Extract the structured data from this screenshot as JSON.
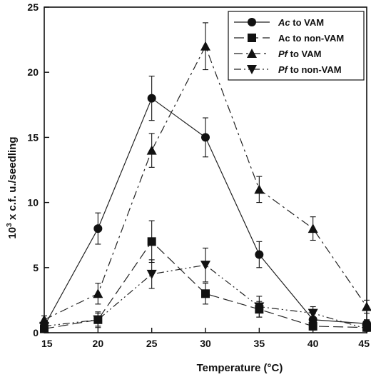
{
  "chart_data": {
    "type": "line",
    "xlabel": "Temperature (°C)",
    "ylabel_base": "10",
    "ylabel_exp": "3",
    "ylabel_rest": " x c.f. u./seedling",
    "x": [
      15,
      20,
      25,
      30,
      35,
      40,
      45
    ],
    "xlim": [
      15,
      45
    ],
    "ylim": [
      0,
      25
    ],
    "xticks": [
      "15",
      "20",
      "25",
      "30",
      "35",
      "40",
      "45"
    ],
    "yticks": [
      "0",
      "5",
      "10",
      "15",
      "20",
      "25"
    ],
    "grid": false,
    "legend_position": "top-right",
    "series": [
      {
        "name_italic": "Ac",
        "name_rest": " to VAM",
        "marker": "circle",
        "dash": "solid",
        "values": [
          0.5,
          8.0,
          18.0,
          15.0,
          6.0,
          1.0,
          0.7
        ],
        "errors": [
          0.3,
          1.2,
          1.7,
          1.5,
          1.0,
          0.5,
          0.3
        ]
      },
      {
        "name_italic": "",
        "name_rest": "Ac to non-VAM",
        "marker": "square",
        "dash": "long-dash",
        "values": [
          0.3,
          1.0,
          7.0,
          3.0,
          1.8,
          0.5,
          0.4
        ],
        "errors": [
          0.2,
          0.6,
          1.6,
          0.8,
          0.6,
          0.3,
          0.2
        ]
      },
      {
        "name_italic": "Pf",
        "name_rest": " to VAM",
        "marker": "triangle-up",
        "dash": "dash-dot",
        "values": [
          1.0,
          3.0,
          14.0,
          22.0,
          11.0,
          8.0,
          2.0
        ],
        "errors": [
          0.3,
          0.8,
          1.3,
          1.8,
          1.0,
          0.9,
          0.5
        ]
      },
      {
        "name_italic": "Pf",
        "name_rest": " to non-VAM",
        "marker": "triangle-down",
        "dash": "dash-dot-dot",
        "values": [
          0.5,
          1.0,
          4.5,
          5.2,
          2.0,
          1.5,
          0.3
        ],
        "errors": [
          0.2,
          0.5,
          1.1,
          1.3,
          0.8,
          0.5,
          0.2
        ]
      }
    ]
  }
}
